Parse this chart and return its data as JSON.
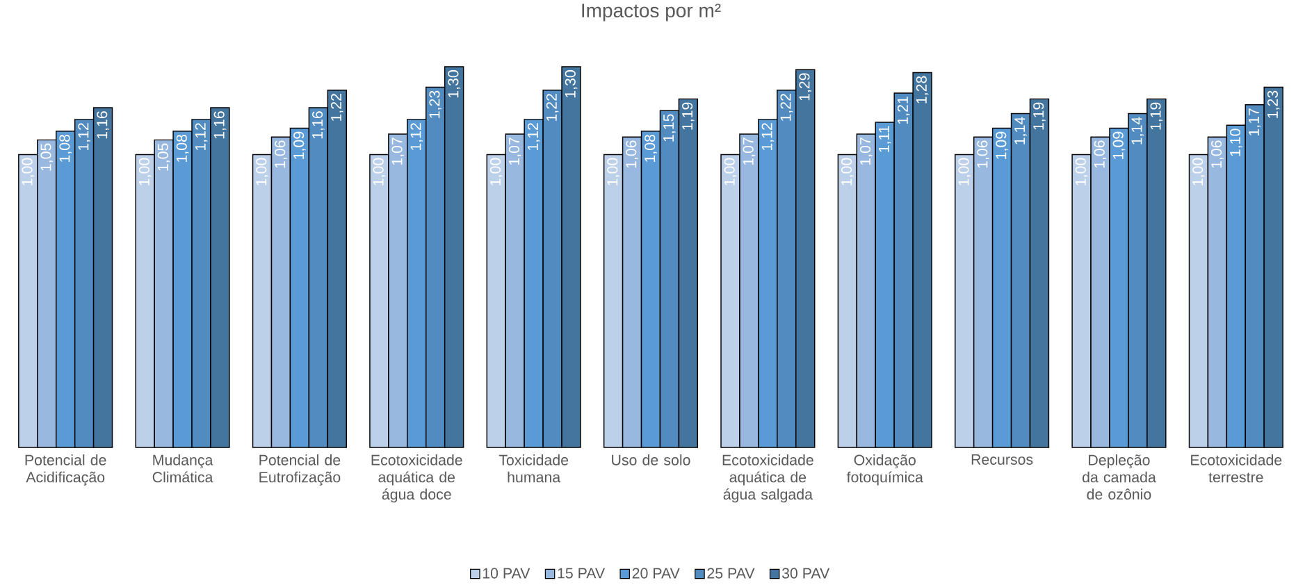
{
  "chart_data": {
    "type": "bar",
    "title": "Impactos por m²",
    "categories": [
      "Potencial de Acidificação",
      "Mudança Climática",
      "Potencial de Eutrofização",
      "Ecotoxicidade aquática de água doce",
      "Toxicidade humana",
      "Uso de solo",
      "Ecotoxicidade aquática de água salgada",
      "Oxidação fotoquímica",
      "Recursos",
      "Depleção da camada de ozônio",
      "Ecotoxicidade terrestre"
    ],
    "series": [
      {
        "name": "10 PAV",
        "color": "#bdd0e9",
        "values": [
          1.0,
          1.0,
          1.0,
          1.0,
          1.0,
          1.0,
          1.0,
          1.0,
          1.0,
          1.0,
          1.0
        ],
        "value_labels": [
          "1,00",
          "1,00",
          "1,00",
          "1,00",
          "1,00",
          "1,00",
          "1,00",
          "1,00",
          "1,00",
          "1,00",
          "1,00"
        ]
      },
      {
        "name": "15 PAV",
        "color": "#98b8df",
        "values": [
          1.05,
          1.05,
          1.06,
          1.07,
          1.07,
          1.06,
          1.07,
          1.07,
          1.06,
          1.06,
          1.06
        ],
        "value_labels": [
          "1,05",
          "1,05",
          "1,06",
          "1,07",
          "1,07",
          "1,06",
          "1,07",
          "1,07",
          "1,06",
          "1,06",
          "1,06"
        ]
      },
      {
        "name": "20 PAV",
        "color": "#5b9bd5",
        "values": [
          1.08,
          1.08,
          1.09,
          1.12,
          1.12,
          1.08,
          1.12,
          1.11,
          1.09,
          1.09,
          1.1
        ],
        "value_labels": [
          "1,08",
          "1,08",
          "1,09",
          "1,12",
          "1,12",
          "1,08",
          "1,12",
          "1,11",
          "1,09",
          "1,09",
          "1,10"
        ]
      },
      {
        "name": "25 PAV",
        "color": "#528bbf",
        "values": [
          1.12,
          1.12,
          1.16,
          1.23,
          1.22,
          1.15,
          1.22,
          1.21,
          1.14,
          1.14,
          1.17
        ],
        "value_labels": [
          "1,12",
          "1,12",
          "1,16",
          "1,23",
          "1,22",
          "1,15",
          "1,22",
          "1,21",
          "1,14",
          "1,14",
          "1,17"
        ]
      },
      {
        "name": "30 PAV",
        "color": "#44759f",
        "values": [
          1.16,
          1.16,
          1.22,
          1.3,
          1.3,
          1.19,
          1.29,
          1.28,
          1.19,
          1.19,
          1.23
        ],
        "value_labels": [
          "1,16",
          "1,16",
          "1,22",
          "1,30",
          "1,30",
          "1,19",
          "1,29",
          "1,28",
          "1,19",
          "1,19",
          "1,23"
        ]
      }
    ],
    "legend": "bottom"
  }
}
